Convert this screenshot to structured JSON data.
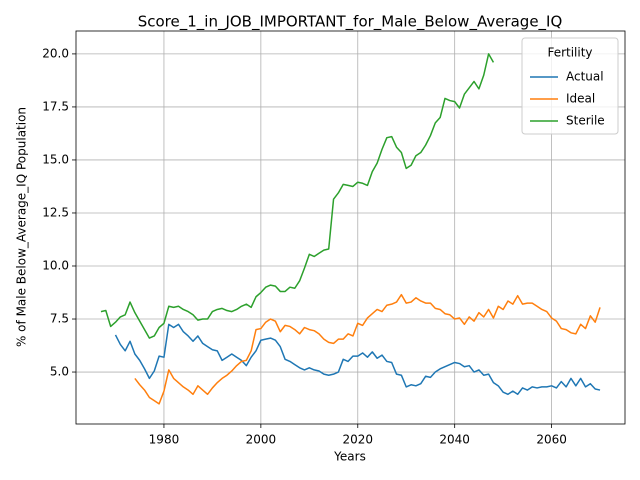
{
  "chart_data": {
    "type": "line",
    "title": "Score_1_in_JOB_IMPORTANT_for_Male_Below_Average_IQ",
    "x_label": "Years",
    "y_label": "% of Male Below_Average_IQ Population",
    "legend_title": "Fertility",
    "legend_position": "upper right",
    "grid": true,
    "xlim": [
      1961.85,
      2075.15
    ],
    "xticks": [
      1980,
      2000,
      2020,
      2040,
      2060
    ],
    "ylim": [
      2.55,
      21.08
    ],
    "yticks": [
      {
        "value": 5,
        "label": "5.0"
      },
      {
        "value": 7.5,
        "label": "7.5"
      },
      {
        "value": 10,
        "label": "10.0"
      },
      {
        "value": 12.5,
        "label": "12.5"
      },
      {
        "value": 15,
        "label": "15.0"
      },
      {
        "value": 17.5,
        "label": "17.5"
      },
      {
        "value": 20,
        "label": "20.0"
      }
    ],
    "x": [
      1967,
      1968,
      1969,
      1970,
      1971,
      1972,
      1973,
      1974,
      1975,
      1976,
      1977,
      1978,
      1979,
      1980,
      1981,
      1982,
      1983,
      1984,
      1985,
      1986,
      1987,
      1988,
      1989,
      1990,
      1991,
      1992,
      1993,
      1994,
      1995,
      1996,
      1997,
      1998,
      1999,
      2000,
      2001,
      2002,
      2003,
      2004,
      2005,
      2006,
      2007,
      2008,
      2009,
      2010,
      2011,
      2012,
      2013,
      2014,
      2015,
      2016,
      2017,
      2018,
      2019,
      2020,
      2021,
      2022,
      2023,
      2024,
      2025,
      2026,
      2027,
      2028,
      2029,
      2030,
      2031,
      2032,
      2033,
      2034,
      2035,
      2036,
      2037,
      2038,
      2039,
      2040,
      2041,
      2042,
      2043,
      2044,
      2045,
      2046,
      2047,
      2048,
      2049,
      2050,
      2051,
      2052,
      2053,
      2054,
      2055,
      2056,
      2057,
      2058,
      2059,
      2060,
      2061,
      2062,
      2063,
      2064,
      2065,
      2066,
      2067,
      2068,
      2069,
      2070
    ],
    "series": [
      {
        "name": "Actual",
        "color": "#1f77b4",
        "values": [
          null,
          null,
          null,
          6.75,
          6.3,
          6.0,
          6.45,
          5.85,
          5.55,
          5.15,
          4.7,
          5.05,
          5.75,
          5.7,
          7.25,
          7.1,
          7.25,
          6.9,
          6.7,
          6.45,
          6.7,
          6.35,
          6.2,
          6.05,
          6.0,
          5.55,
          5.7,
          5.85,
          5.7,
          5.55,
          5.3,
          5.7,
          6.0,
          6.5,
          6.55,
          6.6,
          6.5,
          6.2,
          5.6,
          5.5,
          5.35,
          5.2,
          5.1,
          5.2,
          5.1,
          5.05,
          4.9,
          4.85,
          4.9,
          5.0,
          5.6,
          5.5,
          5.75,
          5.75,
          5.9,
          5.7,
          5.95,
          5.65,
          5.8,
          5.5,
          5.45,
          4.9,
          4.85,
          4.3,
          4.4,
          4.35,
          4.45,
          4.8,
          4.75,
          5.0,
          5.15,
          5.25,
          5.35,
          5.45,
          5.4,
          5.25,
          5.3,
          5.0,
          5.1,
          4.85,
          4.9,
          4.5,
          4.35,
          4.05,
          3.95,
          4.1,
          3.95,
          4.25,
          4.15,
          4.3,
          4.25,
          4.3,
          4.3,
          4.35,
          4.25,
          4.55,
          4.3,
          4.7,
          4.35,
          4.7,
          4.3,
          4.45,
          4.2,
          4.15
        ]
      },
      {
        "name": "Ideal",
        "color": "#ff7f0e",
        "values": [
          null,
          null,
          null,
          null,
          null,
          null,
          null,
          4.7,
          4.4,
          4.15,
          3.8,
          3.65,
          3.5,
          4.1,
          5.1,
          4.7,
          4.5,
          4.3,
          4.15,
          3.95,
          4.35,
          4.15,
          3.95,
          4.25,
          4.5,
          4.7,
          4.85,
          5.05,
          5.3,
          5.5,
          5.55,
          6.0,
          7.0,
          7.05,
          7.35,
          7.5,
          7.4,
          6.9,
          7.2,
          7.15,
          7.0,
          6.8,
          7.1,
          7.0,
          6.95,
          6.8,
          6.55,
          6.4,
          6.35,
          6.55,
          6.55,
          6.8,
          6.7,
          7.3,
          7.2,
          7.55,
          7.75,
          7.95,
          7.85,
          8.15,
          8.2,
          8.3,
          8.65,
          8.25,
          8.3,
          8.5,
          8.35,
          8.25,
          8.25,
          8.0,
          7.95,
          7.75,
          7.7,
          7.5,
          7.55,
          7.25,
          7.6,
          7.4,
          7.8,
          7.6,
          7.95,
          7.55,
          8.1,
          7.95,
          8.35,
          8.2,
          8.6,
          8.2,
          8.25,
          8.25,
          8.1,
          7.95,
          7.85,
          7.55,
          7.4,
          7.05,
          7.0,
          6.85,
          6.8,
          7.25,
          7.05,
          7.65,
          7.35,
          8.05
        ]
      },
      {
        "name": "Sterile",
        "color": "#2ca02c",
        "values": [
          7.85,
          7.9,
          7.15,
          7.35,
          7.6,
          7.7,
          8.3,
          7.8,
          7.4,
          7.0,
          6.6,
          6.7,
          7.1,
          7.3,
          8.1,
          8.05,
          8.1,
          7.95,
          7.85,
          7.7,
          7.45,
          7.5,
          7.5,
          7.85,
          7.95,
          8.0,
          7.9,
          7.85,
          7.95,
          8.1,
          8.2,
          8.05,
          8.55,
          8.75,
          9.0,
          9.1,
          9.05,
          8.8,
          8.8,
          9.0,
          8.95,
          9.3,
          9.9,
          10.55,
          10.45,
          10.6,
          10.75,
          10.8,
          13.15,
          13.45,
          13.85,
          13.8,
          13.75,
          13.95,
          13.9,
          13.8,
          14.45,
          14.85,
          15.5,
          16.05,
          16.1,
          15.6,
          15.35,
          14.6,
          14.75,
          15.2,
          15.35,
          15.7,
          16.15,
          16.75,
          17.0,
          17.9,
          17.8,
          17.75,
          17.45,
          18.1,
          18.4,
          18.7,
          18.35,
          19.0,
          20.0,
          19.6,
          null,
          null,
          null,
          null,
          null,
          null,
          null,
          null,
          null,
          null,
          null,
          null,
          null,
          null,
          null,
          null,
          null,
          null,
          null,
          null,
          null,
          null
        ]
      }
    ]
  }
}
